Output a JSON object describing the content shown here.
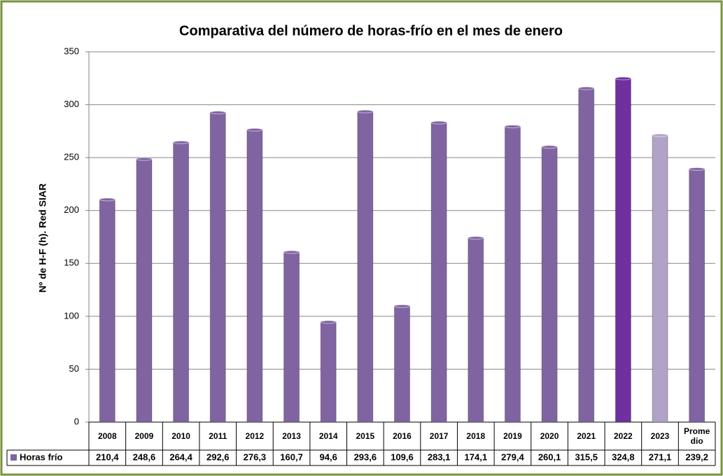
{
  "chart_data": {
    "type": "bar",
    "title": "Comparativa del número de horas-frío en el mes de enero",
    "y_label": "Nº de H-F (h). Red SIAR",
    "categories": [
      "2008",
      "2009",
      "2010",
      "2011",
      "2012",
      "2013",
      "2014",
      "2015",
      "2016",
      "2017",
      "2018",
      "2019",
      "2020",
      "2021",
      "2022",
      "2023",
      "Promedio"
    ],
    "series": [
      {
        "name": "Horas frío",
        "color": "#8064a2",
        "values": [
          210.4,
          248.6,
          264.4,
          292.6,
          276.3,
          160.7,
          94.6,
          293.6,
          109.6,
          283.1,
          174.1,
          279.4,
          260.1,
          315.5,
          324.8,
          271.1,
          239.2
        ],
        "value_labels": [
          "210,4",
          "248,6",
          "264,4",
          "292,6",
          "276,3",
          "160,7",
          "94,6",
          "293,6",
          "109,6",
          "283,1",
          "174,1",
          "279,4",
          "260,1",
          "315,5",
          "324,8",
          "271,1",
          "239,2"
        ],
        "colors": [
          "#8064a2",
          "#8064a2",
          "#8064a2",
          "#8064a2",
          "#8064a2",
          "#8064a2",
          "#8064a2",
          "#8064a2",
          "#8064a2",
          "#8064a2",
          "#8064a2",
          "#8064a2",
          "#8064a2",
          "#8064a2",
          "#7030a0",
          "#b3a2c7",
          "#8064a2"
        ]
      }
    ],
    "ylim": [
      0,
      350
    ],
    "yticks": [
      0,
      50,
      100,
      150,
      200,
      250,
      300,
      350
    ],
    "grid": true,
    "data_table": true
  }
}
